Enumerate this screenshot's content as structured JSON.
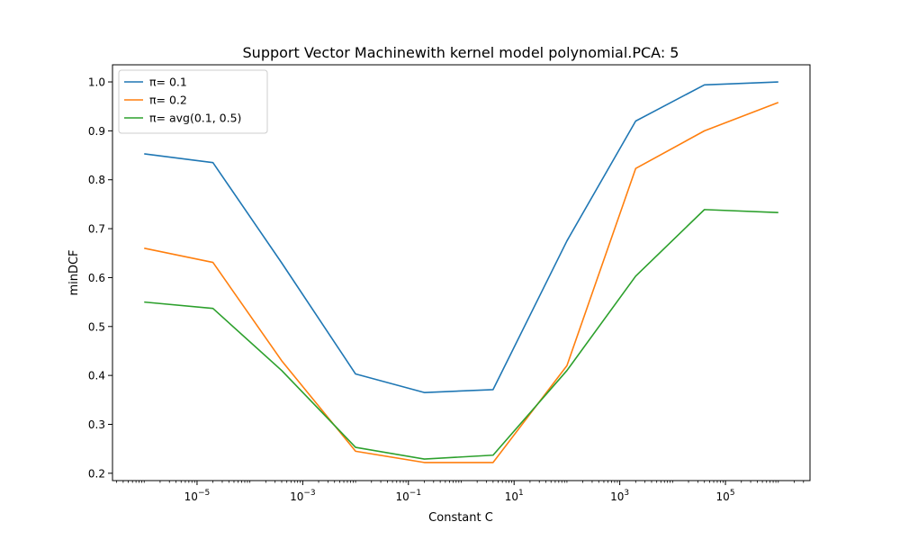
{
  "chart_data": {
    "type": "line",
    "title": "Support Vector Machinewith kernel model polynomial.PCA: 5",
    "xlabel": "Constant C",
    "ylabel": "minDCF",
    "x_scale": "log",
    "x": [
      1e-06,
      2e-05,
      0.0004,
      0.01,
      0.2,
      4,
      100.0,
      2000.0,
      40000.0,
      1000000.0
    ],
    "xlim_exp": [
      -6.6,
      6.6
    ],
    "ylim": [
      0.185,
      1.035
    ],
    "x_ticks": [
      {
        "exp": -5,
        "base": "10",
        "pow": "−5"
      },
      {
        "exp": -3,
        "base": "10",
        "pow": "−3"
      },
      {
        "exp": -1,
        "base": "10",
        "pow": "−1"
      },
      {
        "exp": 1,
        "base": "10",
        "pow": "1"
      },
      {
        "exp": 3,
        "base": "10",
        "pow": "3"
      },
      {
        "exp": 5,
        "base": "10",
        "pow": "5"
      }
    ],
    "y_ticks": [
      {
        "value": 0.2,
        "label": "0.2"
      },
      {
        "value": 0.3,
        "label": "0.3"
      },
      {
        "value": 0.4,
        "label": "0.4"
      },
      {
        "value": 0.5,
        "label": "0.5"
      },
      {
        "value": 0.6,
        "label": "0.6"
      },
      {
        "value": 0.7,
        "label": "0.7"
      },
      {
        "value": 0.8,
        "label": "0.8"
      },
      {
        "value": 0.9,
        "label": "0.9"
      },
      {
        "value": 1.0,
        "label": "1.0"
      }
    ],
    "grid": false,
    "legend_position": "top-left",
    "series": [
      {
        "name": "π= 0.1",
        "color": "#1f77b4",
        "values": [
          0.853,
          0.835,
          0.63,
          0.403,
          0.365,
          0.371,
          0.675,
          0.92,
          0.994,
          1.0
        ]
      },
      {
        "name": "π= 0.2",
        "color": "#ff7f0e",
        "values": [
          0.66,
          0.631,
          0.43,
          0.245,
          0.222,
          0.222,
          0.42,
          0.823,
          0.9,
          0.958
        ]
      },
      {
        "name": "π= avg(0.1, 0.5)",
        "color": "#2ca02c",
        "values": [
          0.55,
          0.537,
          0.41,
          0.253,
          0.229,
          0.237,
          0.41,
          0.603,
          0.739,
          0.733
        ]
      }
    ]
  }
}
